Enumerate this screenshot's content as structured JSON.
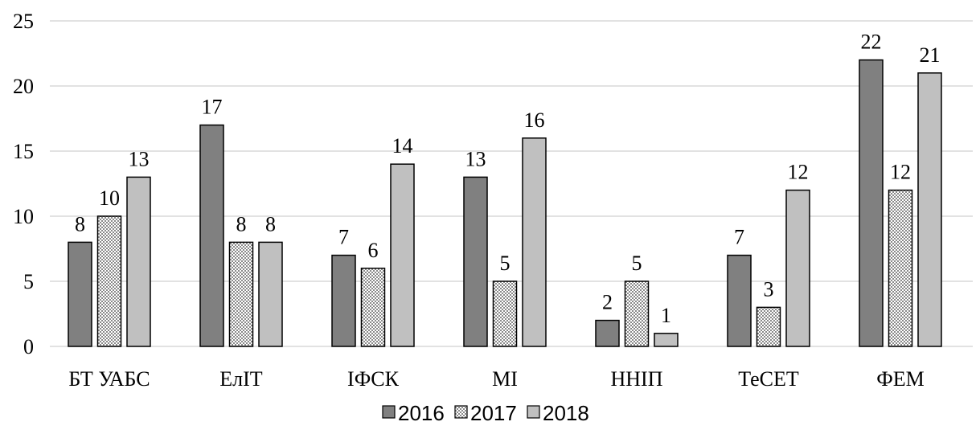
{
  "chart_data": {
    "type": "bar",
    "categories": [
      "БТ УАБС",
      "ЕлІТ",
      "ІФСК",
      "МІ",
      "ННІП",
      "ТеСЕТ",
      "ФЕМ"
    ],
    "series": [
      {
        "name": "2016",
        "values": [
          8,
          17,
          7,
          13,
          2,
          7,
          22
        ],
        "color": "#808080",
        "pattern": "solid"
      },
      {
        "name": "2017",
        "values": [
          10,
          8,
          6,
          5,
          5,
          3,
          12
        ],
        "color": "#a0a0a0",
        "pattern": "checker"
      },
      {
        "name": "2018",
        "values": [
          13,
          8,
          14,
          16,
          1,
          12,
          21
        ],
        "color": "#c0c0c0",
        "pattern": "solid"
      }
    ],
    "ylim": [
      0,
      25
    ],
    "yticks": [
      0,
      5,
      10,
      15,
      20,
      25
    ],
    "grid": true,
    "data_labels": true,
    "legend_position": "bottom"
  }
}
